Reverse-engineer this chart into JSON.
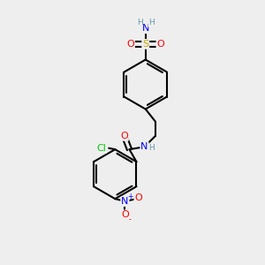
{
  "bg_color": "#eeeeee",
  "bond_color": "#000000",
  "lw": 1.5,
  "atom_colors": {
    "O": "#ff0000",
    "N": "#0000ff",
    "S": "#ccaa00",
    "Cl": "#00cc00",
    "H": "#6699aa",
    "C": "#000000"
  },
  "fs": 8,
  "sfs": 6.5
}
